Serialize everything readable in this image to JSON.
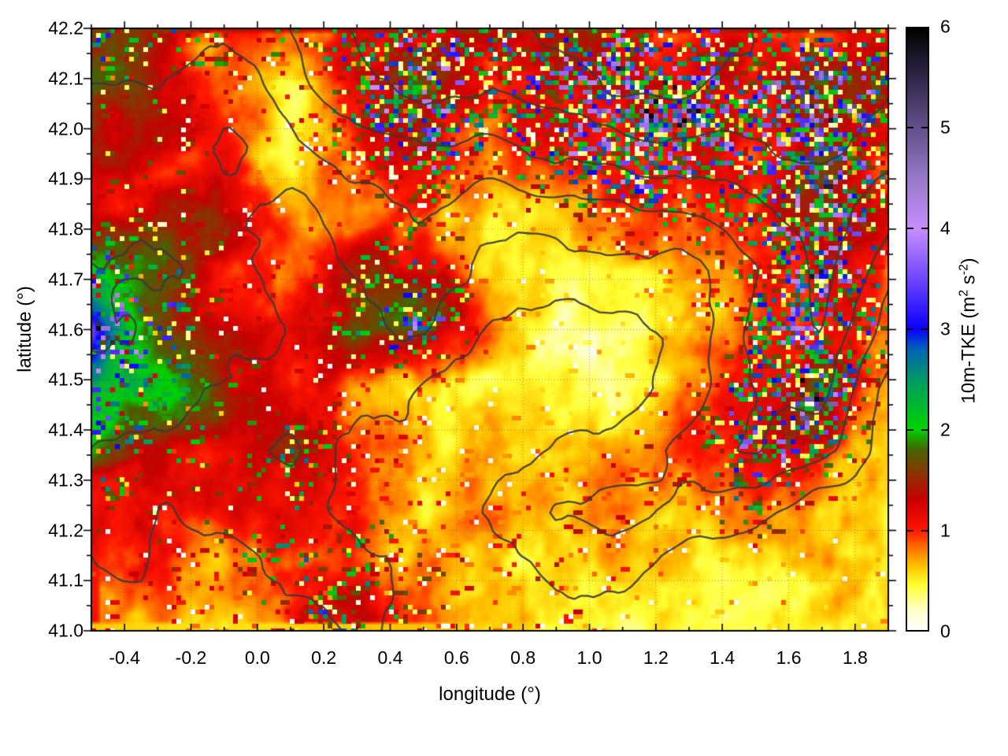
{
  "figure": {
    "background": "#ffffff",
    "axis_color": "#000000",
    "grid_style": "dotted gray at major ticks"
  },
  "colorbar_label": {
    "p1": "10m-TKE (m",
    "sup1": "2",
    "p2": " s",
    "sup2": "-2",
    "p3": ")"
  },
  "chart_data": {
    "type": "heatmap",
    "title": "",
    "xlabel": "longitude (°)",
    "ylabel": "latitude (°)",
    "xlim": [
      -0.5,
      1.9
    ],
    "ylim": [
      41.0,
      42.2
    ],
    "xticks": [
      -0.4,
      -0.2,
      0.0,
      0.2,
      0.4,
      0.6,
      0.8,
      1.0,
      1.2,
      1.4,
      1.6,
      1.8
    ],
    "xtick_labels": [
      "-0.4",
      "-0.2",
      "0.0",
      "0.2",
      "0.4",
      "0.6",
      "0.8",
      "1.0",
      "1.2",
      "1.4",
      "1.6",
      "1.8"
    ],
    "yticks": [
      41.0,
      41.1,
      41.2,
      41.3,
      41.4,
      41.5,
      41.6,
      41.7,
      41.8,
      41.9,
      42.0,
      42.1,
      42.2
    ],
    "ytick_labels": [
      "41.0",
      "41.1",
      "41.2",
      "41.3",
      "41.4",
      "41.5",
      "41.6",
      "41.7",
      "41.8",
      "41.9",
      "42.0",
      "42.1",
      "42.2"
    ],
    "x_minor_step": 0.1,
    "y_minor_step": 0.05,
    "colorbar": {
      "min": 0,
      "max": 6,
      "ticks": [
        0,
        1,
        2,
        3,
        4,
        5,
        6
      ],
      "tick_labels": [
        "0",
        "1",
        "2",
        "3",
        "4",
        "5",
        "6"
      ],
      "label": "10m-TKE (m2 s-2)"
    },
    "palette": [
      [
        0.0,
        "#ffffff"
      ],
      [
        0.2,
        "#ffffc8"
      ],
      [
        0.45,
        "#ffff32"
      ],
      [
        0.62,
        "#ffc800"
      ],
      [
        0.8,
        "#ff7800"
      ],
      [
        1.0,
        "#ff1400"
      ],
      [
        1.3,
        "#c80000"
      ],
      [
        1.55,
        "#8c3200"
      ],
      [
        1.8,
        "#466400"
      ],
      [
        2.0,
        "#00d200"
      ],
      [
        2.45,
        "#00a05a"
      ],
      [
        2.8,
        "#0064b4"
      ],
      [
        3.0,
        "#0a00ff"
      ],
      [
        3.5,
        "#6e46ff"
      ],
      [
        4.0,
        "#c88cff"
      ],
      [
        4.5,
        "#9678c8"
      ],
      [
        5.0,
        "#64508c"
      ],
      [
        5.5,
        "#32284b"
      ],
      [
        6.0,
        "#000000"
      ]
    ],
    "contour_color": "#3a3a3a",
    "terrain_contour_levels": [
      2.5,
      3.5,
      4.5,
      5.5,
      6.5,
      7.5
    ],
    "grid_lon": [
      -0.5,
      -0.3,
      -0.1,
      0.1,
      0.3,
      0.5,
      0.7,
      0.9,
      1.1,
      1.3,
      1.5,
      1.7,
      1.9
    ],
    "grid_lat": [
      42.2,
      42.08,
      41.96,
      41.84,
      41.72,
      41.6,
      41.48,
      41.36,
      41.24,
      41.12,
      41.0
    ],
    "tke_base_grid_m2s2": [
      [
        1.2,
        1.3,
        1.1,
        1.0,
        1.2,
        1.0,
        1.1,
        1.3,
        1.2,
        1.1,
        1.0,
        0.9,
        1.1
      ],
      [
        1.3,
        1.2,
        0.9,
        0.4,
        1.0,
        1.3,
        0.9,
        1.1,
        1.4,
        1.3,
        1.0,
        1.4,
        1.2
      ],
      [
        1.2,
        1.1,
        1.0,
        0.35,
        0.8,
        1.2,
        0.7,
        0.9,
        1.3,
        1.2,
        0.9,
        1.5,
        1.0
      ],
      [
        1.0,
        1.2,
        1.0,
        0.6,
        0.7,
        0.9,
        0.6,
        0.6,
        0.8,
        0.8,
        0.9,
        1.4,
        0.9
      ],
      [
        1.7,
        1.4,
        1.1,
        0.8,
        1.2,
        1.2,
        0.5,
        0.4,
        0.5,
        0.7,
        0.9,
        1.3,
        0.7
      ],
      [
        2.6,
        1.5,
        1.1,
        1.0,
        1.4,
        1.5,
        0.8,
        0.4,
        0.4,
        0.6,
        1.0,
        1.2,
        0.9
      ],
      [
        2.1,
        1.7,
        1.2,
        0.9,
        0.8,
        0.7,
        0.5,
        0.4,
        0.4,
        0.7,
        1.1,
        1.4,
        0.6
      ],
      [
        1.7,
        1.4,
        1.2,
        1.3,
        0.8,
        0.5,
        0.5,
        0.5,
        0.7,
        0.9,
        1.3,
        1.1,
        0.5
      ],
      [
        1.1,
        1.0,
        1.2,
        1.1,
        0.9,
        0.6,
        0.7,
        0.6,
        0.8,
        0.5,
        0.9,
        0.6,
        0.45
      ],
      [
        0.8,
        1.0,
        0.8,
        1.3,
        1.1,
        0.8,
        0.6,
        0.7,
        0.5,
        0.45,
        0.5,
        0.5,
        0.5
      ],
      [
        0.7,
        0.8,
        0.6,
        1.0,
        1.2,
        0.8,
        0.5,
        0.6,
        0.45,
        0.45,
        0.5,
        0.5,
        0.5
      ]
    ],
    "speckle_roughness_grid": [
      [
        0.5,
        0.35,
        0.3,
        0.3,
        0.5,
        0.5,
        0.4,
        0.5,
        0.5,
        0.5,
        0.4,
        0.4,
        0.4
      ],
      [
        0.2,
        0.15,
        0.1,
        0.1,
        0.55,
        0.7,
        0.5,
        0.65,
        0.8,
        0.7,
        0.6,
        0.8,
        0.5
      ],
      [
        0.15,
        0.1,
        0.1,
        0.05,
        0.4,
        0.6,
        0.4,
        0.5,
        0.85,
        0.8,
        0.5,
        0.9,
        0.4
      ],
      [
        0.1,
        0.15,
        0.1,
        0.05,
        0.1,
        0.2,
        0.1,
        0.15,
        0.3,
        0.3,
        0.4,
        0.8,
        0.3
      ],
      [
        0.5,
        0.3,
        0.1,
        0.05,
        0.2,
        0.35,
        0.05,
        0.05,
        0.05,
        0.1,
        0.3,
        0.8,
        0.2
      ],
      [
        0.6,
        0.4,
        0.1,
        0.1,
        0.3,
        0.4,
        0.1,
        0.05,
        0.05,
        0.05,
        0.4,
        0.7,
        0.3
      ],
      [
        0.4,
        0.3,
        0.15,
        0.1,
        0.1,
        0.1,
        0.05,
        0.05,
        0.05,
        0.1,
        0.5,
        0.8,
        0.1
      ],
      [
        0.3,
        0.2,
        0.2,
        0.35,
        0.15,
        0.05,
        0.05,
        0.1,
        0.15,
        0.2,
        0.6,
        0.5,
        0.05
      ],
      [
        0.2,
        0.1,
        0.2,
        0.25,
        0.2,
        0.1,
        0.15,
        0.1,
        0.2,
        0.1,
        0.3,
        0.1,
        0.05
      ],
      [
        0.1,
        0.15,
        0.1,
        0.35,
        0.3,
        0.2,
        0.1,
        0.2,
        0.1,
        0.05,
        0.05,
        0.05,
        0.05
      ],
      [
        0.1,
        0.1,
        0.1,
        0.25,
        0.3,
        0.15,
        0.1,
        0.15,
        0.05,
        0.05,
        0.05,
        0.05,
        0.05
      ]
    ],
    "terrain_proxy_grid": [
      [
        5.0,
        5.2,
        4.6,
        5.5,
        6.5,
        7.5,
        7.0,
        7.8,
        8.5,
        8.2,
        7.6,
        7.2,
        6.8
      ],
      [
        4.4,
        4.6,
        4.0,
        4.8,
        5.8,
        6.8,
        6.4,
        7.0,
        7.8,
        7.6,
        7.0,
        7.4,
        6.6
      ],
      [
        3.8,
        4.0,
        3.4,
        4.0,
        5.0,
        5.4,
        5.2,
        6.0,
        6.4,
        6.2,
        6.2,
        6.8,
        6.0
      ],
      [
        3.8,
        4.4,
        3.8,
        3.2,
        4.2,
        4.4,
        4.0,
        4.2,
        4.4,
        4.8,
        5.2,
        6.0,
        5.0
      ],
      [
        4.4,
        4.8,
        4.0,
        3.0,
        3.8,
        4.2,
        3.2,
        3.0,
        3.0,
        3.4,
        4.4,
        5.8,
        4.0
      ],
      [
        4.6,
        4.2,
        3.8,
        3.6,
        3.2,
        3.4,
        2.4,
        2.2,
        2.2,
        3.0,
        4.8,
        5.6,
        3.0
      ],
      [
        4.0,
        3.8,
        3.2,
        3.0,
        3.0,
        2.2,
        2.0,
        2.0,
        2.2,
        3.0,
        4.6,
        4.8,
        2.2
      ],
      [
        3.4,
        3.2,
        3.0,
        3.8,
        2.2,
        2.0,
        2.0,
        2.8,
        3.0,
        3.8,
        4.6,
        3.8,
        2.0
      ],
      [
        3.0,
        2.4,
        3.0,
        3.0,
        2.2,
        2.0,
        2.8,
        3.6,
        3.8,
        3.0,
        3.0,
        2.0,
        1.4
      ],
      [
        2.4,
        2.2,
        2.2,
        3.0,
        2.8,
        2.2,
        2.0,
        2.8,
        2.8,
        2.0,
        1.8,
        1.2,
        1.0
      ],
      [
        2.2,
        2.0,
        2.0,
        2.2,
        2.8,
        2.0,
        1.8,
        2.0,
        2.0,
        1.2,
        1.0,
        1.0,
        1.0
      ]
    ]
  }
}
